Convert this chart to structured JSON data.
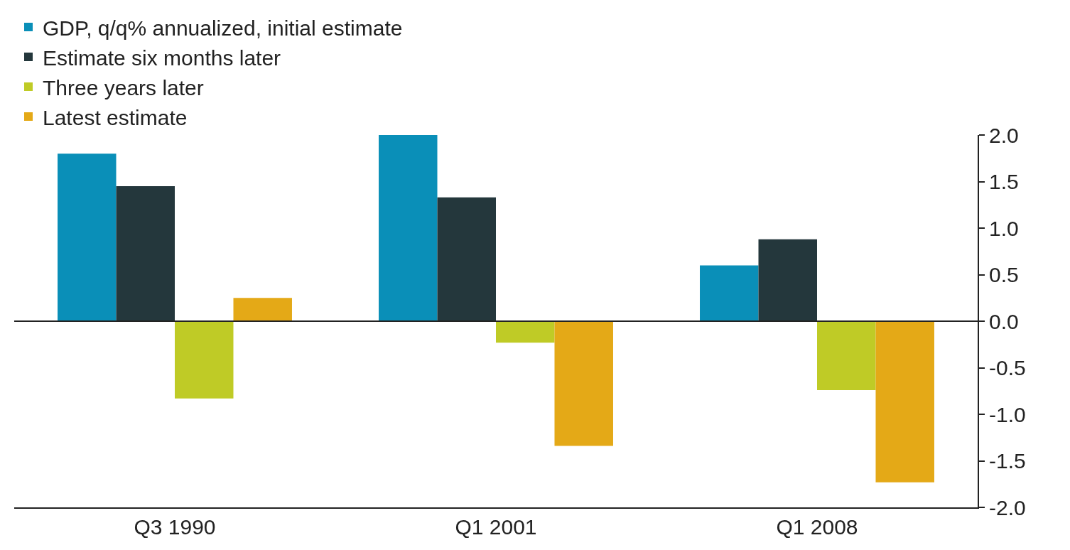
{
  "chart_data": {
    "type": "bar",
    "categories": [
      "Q3 1990",
      "Q1 2001",
      "Q1 2008"
    ],
    "series": [
      {
        "name": "GDP, q/q% annualized, initial estimate",
        "color": "#0a8fb8",
        "values": [
          1.8,
          2.0,
          0.6
        ]
      },
      {
        "name": "Estimate six months later",
        "color": "#24373c",
        "values": [
          1.45,
          1.33,
          0.88
        ]
      },
      {
        "name": "Three years later",
        "color": "#bfcb26",
        "values": [
          -0.83,
          -0.23,
          -0.74
        ]
      },
      {
        "name": "Latest estimate",
        "color": "#e4a917",
        "values": [
          0.25,
          -1.34,
          -1.73
        ]
      }
    ],
    "ylim": [
      -2.0,
      2.0
    ],
    "yticks": [
      {
        "value": -2,
        "label": "-2.0"
      },
      {
        "value": -1.5,
        "label": "-1.5"
      },
      {
        "value": -1,
        "label": "-1.0"
      },
      {
        "value": -0.5,
        "label": "-0.5"
      },
      {
        "value": 0,
        "label": "0.0"
      },
      {
        "value": 0.5,
        "label": "0.5"
      },
      {
        "value": 1,
        "label": "1.0"
      },
      {
        "value": 1.5,
        "label": "1.5"
      },
      {
        "value": 2,
        "label": "2.0"
      }
    ],
    "ref_lines": [
      {
        "axis": "y",
        "value": 0,
        "color": "#222222"
      }
    ],
    "legend": "top left"
  }
}
